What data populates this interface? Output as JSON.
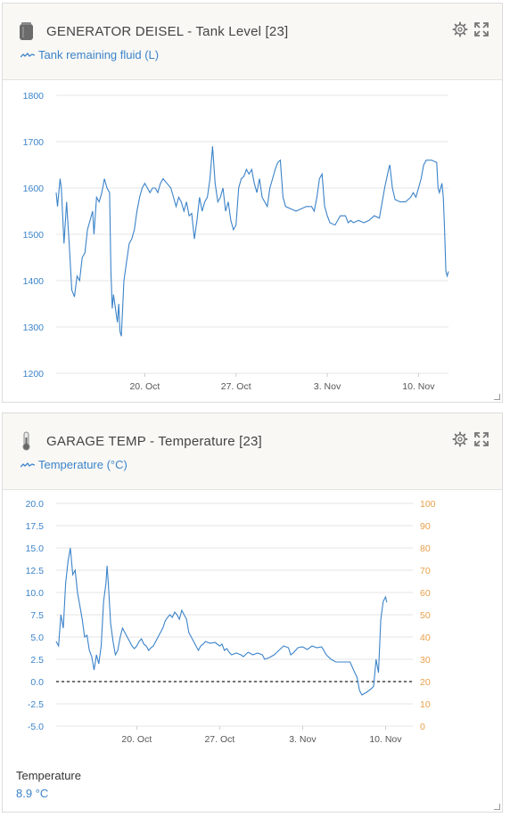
{
  "widgets": [
    {
      "title": "GENERATOR DEISEL - Tank Level [23]",
      "legend": "Tank remaining fluid (L)",
      "icon": "tank-icon"
    },
    {
      "title": "GARAGE TEMP - Temperature [23]",
      "legend": "Temperature (°C)",
      "icon": "thermometer-icon",
      "footer_label": "Temperature",
      "footer_value": "8.9 °C"
    }
  ],
  "chart_data": [
    {
      "type": "line",
      "ylim": [
        1200,
        1800
      ],
      "y_ticks": [
        "1800",
        "1700",
        "1600",
        "1500",
        "1400",
        "1300",
        "1200"
      ],
      "x_ticks": [
        "20. Oct",
        "27. Oct",
        "3. Nov",
        "10. Nov"
      ],
      "x_range_days": [
        13.2,
        43.3
      ],
      "x_tick_days": [
        20,
        27,
        34,
        41
      ],
      "series": [
        {
          "points": [
            [
              13.2,
              1590
            ],
            [
              13.3,
              1560
            ],
            [
              13.5,
              1620
            ],
            [
              13.6,
              1600
            ],
            [
              13.8,
              1480
            ],
            [
              14.0,
              1570
            ],
            [
              14.2,
              1480
            ],
            [
              14.4,
              1380
            ],
            [
              14.6,
              1365
            ],
            [
              14.8,
              1410
            ],
            [
              15.0,
              1400
            ],
            [
              15.2,
              1450
            ],
            [
              15.4,
              1460
            ],
            [
              15.6,
              1510
            ],
            [
              15.8,
              1530
            ],
            [
              16.0,
              1550
            ],
            [
              16.1,
              1500
            ],
            [
              16.3,
              1580
            ],
            [
              16.5,
              1570
            ],
            [
              16.7,
              1590
            ],
            [
              16.9,
              1620
            ],
            [
              17.1,
              1600
            ],
            [
              17.3,
              1590
            ],
            [
              17.4,
              1420
            ],
            [
              17.5,
              1340
            ],
            [
              17.6,
              1370
            ],
            [
              17.8,
              1330
            ],
            [
              17.9,
              1310
            ],
            [
              18.0,
              1350
            ],
            [
              18.1,
              1290
            ],
            [
              18.2,
              1280
            ],
            [
              18.4,
              1400
            ],
            [
              18.6,
              1440
            ],
            [
              18.8,
              1480
            ],
            [
              19.0,
              1490
            ],
            [
              19.2,
              1510
            ],
            [
              19.4,
              1550
            ],
            [
              19.6,
              1580
            ],
            [
              19.8,
              1600
            ],
            [
              20.0,
              1610
            ],
            [
              20.2,
              1600
            ],
            [
              20.4,
              1590
            ],
            [
              20.6,
              1600
            ],
            [
              20.8,
              1600
            ],
            [
              21.0,
              1590
            ],
            [
              21.2,
              1610
            ],
            [
              21.4,
              1620
            ],
            [
              21.7,
              1610
            ],
            [
              22.0,
              1600
            ],
            [
              22.2,
              1580
            ],
            [
              22.4,
              1560
            ],
            [
              22.6,
              1580
            ],
            [
              22.8,
              1570
            ],
            [
              23.0,
              1550
            ],
            [
              23.2,
              1570
            ],
            [
              23.4,
              1540
            ],
            [
              23.6,
              1545
            ],
            [
              23.8,
              1490
            ],
            [
              24.0,
              1530
            ],
            [
              24.2,
              1580
            ],
            [
              24.4,
              1550
            ],
            [
              24.6,
              1570
            ],
            [
              24.8,
              1580
            ],
            [
              25.0,
              1620
            ],
            [
              25.2,
              1690
            ],
            [
              25.4,
              1610
            ],
            [
              25.6,
              1570
            ],
            [
              25.8,
              1580
            ],
            [
              26.0,
              1600
            ],
            [
              26.2,
              1550
            ],
            [
              26.4,
              1570
            ],
            [
              26.6,
              1530
            ],
            [
              26.8,
              1510
            ],
            [
              27.0,
              1520
            ],
            [
              27.2,
              1600
            ],
            [
              27.4,
              1620
            ],
            [
              27.6,
              1625
            ],
            [
              27.8,
              1640
            ],
            [
              28.0,
              1630
            ],
            [
              28.2,
              1640
            ],
            [
              28.4,
              1610
            ],
            [
              28.6,
              1590
            ],
            [
              28.8,
              1620
            ],
            [
              29.0,
              1580
            ],
            [
              29.2,
              1570
            ],
            [
              29.4,
              1560
            ],
            [
              29.6,
              1600
            ],
            [
              29.8,
              1620
            ],
            [
              30.0,
              1640
            ],
            [
              30.2,
              1655
            ],
            [
              30.4,
              1660
            ],
            [
              30.6,
              1580
            ],
            [
              30.8,
              1560
            ],
            [
              31.2,
              1555
            ],
            [
              31.6,
              1550
            ],
            [
              32.0,
              1555
            ],
            [
              32.4,
              1560
            ],
            [
              32.8,
              1560
            ],
            [
              33.0,
              1550
            ],
            [
              33.2,
              1580
            ],
            [
              33.4,
              1620
            ],
            [
              33.6,
              1630
            ],
            [
              33.8,
              1560
            ],
            [
              34.0,
              1540
            ],
            [
              34.2,
              1525
            ],
            [
              34.6,
              1520
            ],
            [
              34.8,
              1530
            ],
            [
              35.0,
              1540
            ],
            [
              35.4,
              1540
            ],
            [
              35.6,
              1525
            ],
            [
              35.8,
              1530
            ],
            [
              36.0,
              1525
            ],
            [
              36.4,
              1530
            ],
            [
              36.8,
              1525
            ],
            [
              37.2,
              1530
            ],
            [
              37.6,
              1540
            ],
            [
              38.0,
              1535
            ],
            [
              38.4,
              1600
            ],
            [
              38.7,
              1640
            ],
            [
              38.8,
              1650
            ],
            [
              39.0,
              1600
            ],
            [
              39.2,
              1575
            ],
            [
              39.6,
              1570
            ],
            [
              40.0,
              1570
            ],
            [
              40.4,
              1580
            ],
            [
              40.6,
              1590
            ],
            [
              40.8,
              1580
            ],
            [
              41.0,
              1600
            ],
            [
              41.2,
              1620
            ],
            [
              41.4,
              1650
            ],
            [
              41.6,
              1660
            ],
            [
              42.0,
              1660
            ],
            [
              42.4,
              1655
            ],
            [
              42.5,
              1600
            ],
            [
              42.6,
              1590
            ],
            [
              42.8,
              1610
            ],
            [
              42.9,
              1580
            ],
            [
              43.0,
              1510
            ],
            [
              43.1,
              1420
            ],
            [
              43.2,
              1410
            ],
            [
              43.3,
              1420
            ]
          ]
        }
      ]
    },
    {
      "type": "line",
      "ylim": [
        -5,
        20
      ],
      "y_ticks": [
        "20.0",
        "17.5",
        "15.0",
        "12.5",
        "10.0",
        "7.5",
        "5.0",
        "2.5",
        "0.0",
        "-2.5",
        "-5.0"
      ],
      "y2_ticks": [
        "100",
        "90",
        "80",
        "70",
        "60",
        "50",
        "40",
        "30",
        "20",
        "10",
        "0"
      ],
      "x_ticks": [
        "20. Oct",
        "27. Oct",
        "3. Nov",
        "10. Nov"
      ],
      "x_range_days": [
        13.2,
        43.3
      ],
      "x_tick_days": [
        20,
        27,
        34,
        41
      ],
      "zero_line": 0,
      "series": [
        {
          "name": "Temperature (°C)",
          "points": [
            [
              13.2,
              4.5
            ],
            [
              13.4,
              4.0
            ],
            [
              13.6,
              7.5
            ],
            [
              13.8,
              6.0
            ],
            [
              14.0,
              11.0
            ],
            [
              14.2,
              13.5
            ],
            [
              14.4,
              15.0
            ],
            [
              14.6,
              12.0
            ],
            [
              14.8,
              12.5
            ],
            [
              15.0,
              10.0
            ],
            [
              15.2,
              8.5
            ],
            [
              15.4,
              7.0
            ],
            [
              15.6,
              5.0
            ],
            [
              15.8,
              5.2
            ],
            [
              16.0,
              3.5
            ],
            [
              16.2,
              2.8
            ],
            [
              16.4,
              1.3
            ],
            [
              16.6,
              3.0
            ],
            [
              16.8,
              2.0
            ],
            [
              17.0,
              4.0
            ],
            [
              17.2,
              9.0
            ],
            [
              17.4,
              11.0
            ],
            [
              17.5,
              13.0
            ],
            [
              17.6,
              11.0
            ],
            [
              17.8,
              6.5
            ],
            [
              18.0,
              4.5
            ],
            [
              18.2,
              3.0
            ],
            [
              18.4,
              3.5
            ],
            [
              18.6,
              5.0
            ],
            [
              18.8,
              6.0
            ],
            [
              19.0,
              5.5
            ],
            [
              19.2,
              5.0
            ],
            [
              19.4,
              4.5
            ],
            [
              19.6,
              4.0
            ],
            [
              19.8,
              3.7
            ],
            [
              20.0,
              4.0
            ],
            [
              20.2,
              4.5
            ],
            [
              20.4,
              4.8
            ],
            [
              20.6,
              4.2
            ],
            [
              20.8,
              4.0
            ],
            [
              21.0,
              3.5
            ],
            [
              21.2,
              3.8
            ],
            [
              21.4,
              4.0
            ],
            [
              21.6,
              4.5
            ],
            [
              21.8,
              5.0
            ],
            [
              22.0,
              5.5
            ],
            [
              22.2,
              6.0
            ],
            [
              22.4,
              6.8
            ],
            [
              22.6,
              7.2
            ],
            [
              22.8,
              7.5
            ],
            [
              23.0,
              7.2
            ],
            [
              23.2,
              7.8
            ],
            [
              23.4,
              7.5
            ],
            [
              23.6,
              7.0
            ],
            [
              23.8,
              8.0
            ],
            [
              24.0,
              7.5
            ],
            [
              24.2,
              7.0
            ],
            [
              24.4,
              5.5
            ],
            [
              24.6,
              5.0
            ],
            [
              24.8,
              4.5
            ],
            [
              25.0,
              4.0
            ],
            [
              25.2,
              3.5
            ],
            [
              25.4,
              4.0
            ],
            [
              25.6,
              4.2
            ],
            [
              25.8,
              4.5
            ],
            [
              26.2,
              4.3
            ],
            [
              26.6,
              4.4
            ],
            [
              27.0,
              4.0
            ],
            [
              27.2,
              4.2
            ],
            [
              27.4,
              3.5
            ],
            [
              27.6,
              3.7
            ],
            [
              27.8,
              3.3
            ],
            [
              28.0,
              3.0
            ],
            [
              28.4,
              3.2
            ],
            [
              28.8,
              3.0
            ],
            [
              29.0,
              2.8
            ],
            [
              29.4,
              3.3
            ],
            [
              29.8,
              3.0
            ],
            [
              30.2,
              3.2
            ],
            [
              30.6,
              3.0
            ],
            [
              30.8,
              2.5
            ],
            [
              31.2,
              2.7
            ],
            [
              31.6,
              3.0
            ],
            [
              32.0,
              3.5
            ],
            [
              32.4,
              4.0
            ],
            [
              32.8,
              3.8
            ],
            [
              33.0,
              3.0
            ],
            [
              33.2,
              3.2
            ],
            [
              33.6,
              3.8
            ],
            [
              34.0,
              3.9
            ],
            [
              34.4,
              3.6
            ],
            [
              34.8,
              4.0
            ],
            [
              35.2,
              3.8
            ],
            [
              35.6,
              3.9
            ],
            [
              36.0,
              3.0
            ],
            [
              36.4,
              2.5
            ],
            [
              36.8,
              2.2
            ],
            [
              37.2,
              2.2
            ],
            [
              37.6,
              2.2
            ],
            [
              38.0,
              2.2
            ],
            [
              38.4,
              1.0
            ],
            [
              38.6,
              0.5
            ],
            [
              38.8,
              -1.0
            ],
            [
              39.0,
              -1.5
            ],
            [
              39.4,
              -1.2
            ],
            [
              39.8,
              -0.8
            ],
            [
              40.0,
              -0.5
            ],
            [
              40.2,
              2.5
            ],
            [
              40.4,
              1.0
            ],
            [
              40.6,
              7.0
            ],
            [
              40.8,
              9.0
            ],
            [
              41.0,
              9.5
            ],
            [
              41.1,
              8.9
            ]
          ]
        }
      ]
    }
  ]
}
